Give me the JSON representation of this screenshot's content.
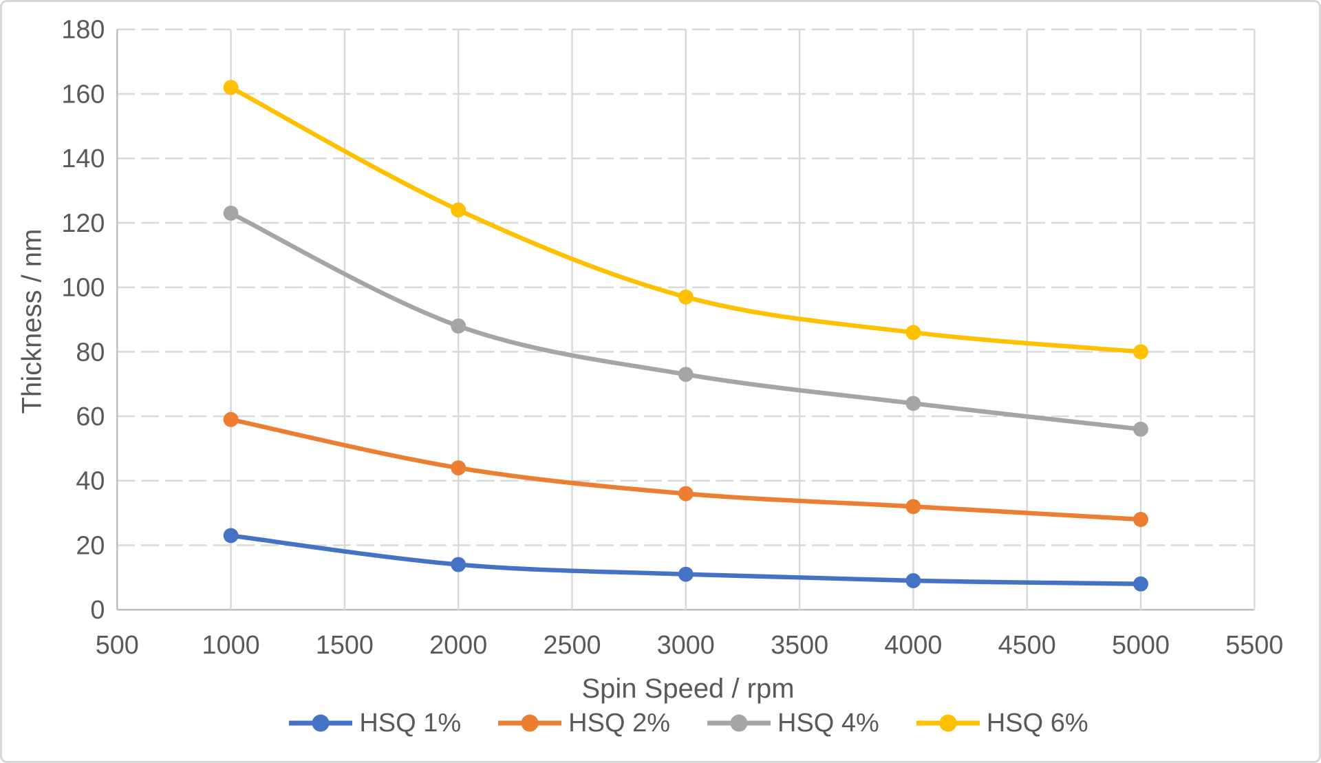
{
  "chart_data": {
    "type": "line",
    "title": "",
    "xlabel": "Spin Speed / rpm",
    "ylabel": "Thickness / nm",
    "x": [
      1000,
      2000,
      3000,
      4000,
      5000
    ],
    "series": [
      {
        "name": "HSQ 1%",
        "color": "#4472C4",
        "values": [
          23,
          14,
          11,
          9,
          8
        ]
      },
      {
        "name": "HSQ 2%",
        "color": "#ED7D31",
        "values": [
          59,
          44,
          36,
          32,
          28
        ]
      },
      {
        "name": "HSQ 4%",
        "color": "#A5A5A5",
        "values": [
          123,
          88,
          73,
          64,
          56
        ]
      },
      {
        "name": "HSQ 6%",
        "color": "#FFC000",
        "values": [
          162,
          124,
          97,
          86,
          80
        ]
      }
    ],
    "xlim": [
      500,
      5500
    ],
    "x_tick_step": 500,
    "ylim": [
      0,
      180
    ],
    "y_tick_step": 20,
    "grid": {
      "horizontal": "dashed",
      "vertical": "solid"
    },
    "line_style": "smooth",
    "marker": "circle",
    "legend_position": "bottom"
  },
  "colors": {
    "gridline": "#D9D9D9",
    "axis_line": "#BFBFBF",
    "text": "#595959",
    "background": "#FFFFFF"
  }
}
